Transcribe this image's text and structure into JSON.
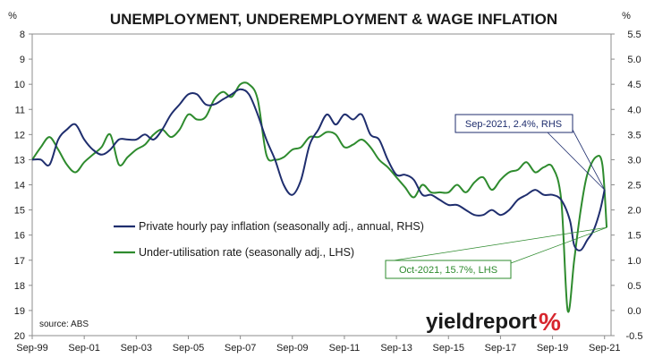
{
  "chart_data": {
    "type": "line",
    "title": "UNEMPLOYMENT, UNDEREMPLOYMENT & WAGE INFLATION",
    "left_axis": {
      "unit_label": "%",
      "range": [
        8,
        20
      ],
      "inverted": true,
      "ticks": [
        "8",
        "9",
        "10",
        "11",
        "12",
        "13",
        "14",
        "15",
        "16",
        "17",
        "18",
        "19",
        "20"
      ]
    },
    "right_axis": {
      "unit_label": "%",
      "range": [
        -0.5,
        5.5
      ],
      "ticks": [
        "5.5",
        "5.0",
        "4.5",
        "4.0",
        "3.5",
        "3.0",
        "2.5",
        "2.0",
        "1.5",
        "1.0",
        "0.5",
        "0.0",
        "-0.5"
      ]
    },
    "x_axis": {
      "range": [
        1999.667,
        2021.917
      ],
      "ticks": [
        "Sep-99",
        "Sep-01",
        "Sep-03",
        "Sep-05",
        "Sep-07",
        "Sep-09",
        "Sep-11",
        "Sep-13",
        "Sep-15",
        "Sep-17",
        "Sep-19",
        "Sep-21"
      ],
      "tick_values": [
        1999.667,
        2001.667,
        2003.667,
        2005.667,
        2007.667,
        2009.667,
        2011.667,
        2013.667,
        2015.667,
        2017.667,
        2019.667,
        2021.667
      ]
    },
    "grid": false,
    "legend_position": "center-left",
    "series": [
      {
        "name": "Private hourly pay inflation (seasonally adj., annual, RHS)",
        "axis": "right",
        "color": "#1f2e6e",
        "points": [
          [
            1999.667,
            3.0
          ],
          [
            2000.0,
            3.0
          ],
          [
            2000.333,
            2.9
          ],
          [
            2000.667,
            3.4
          ],
          [
            2001.0,
            3.6
          ],
          [
            2001.333,
            3.7
          ],
          [
            2001.667,
            3.4
          ],
          [
            2002.0,
            3.2
          ],
          [
            2002.333,
            3.1
          ],
          [
            2002.667,
            3.2
          ],
          [
            2003.0,
            3.4
          ],
          [
            2003.333,
            3.4
          ],
          [
            2003.667,
            3.4
          ],
          [
            2004.0,
            3.5
          ],
          [
            2004.333,
            3.4
          ],
          [
            2004.667,
            3.6
          ],
          [
            2005.0,
            3.9
          ],
          [
            2005.333,
            4.1
          ],
          [
            2005.667,
            4.3
          ],
          [
            2006.0,
            4.3
          ],
          [
            2006.333,
            4.1
          ],
          [
            2006.667,
            4.1
          ],
          [
            2007.0,
            4.2
          ],
          [
            2007.333,
            4.3
          ],
          [
            2007.667,
            4.4
          ],
          [
            2008.0,
            4.3
          ],
          [
            2008.333,
            3.9
          ],
          [
            2008.667,
            3.4
          ],
          [
            2009.0,
            3.0
          ],
          [
            2009.333,
            2.5
          ],
          [
            2009.667,
            2.3
          ],
          [
            2010.0,
            2.6
          ],
          [
            2010.333,
            3.3
          ],
          [
            2010.667,
            3.6
          ],
          [
            2011.0,
            3.9
          ],
          [
            2011.333,
            3.7
          ],
          [
            2011.667,
            3.9
          ],
          [
            2012.0,
            3.8
          ],
          [
            2012.333,
            3.9
          ],
          [
            2012.667,
            3.5
          ],
          [
            2013.0,
            3.4
          ],
          [
            2013.333,
            3.0
          ],
          [
            2013.667,
            2.7
          ],
          [
            2014.0,
            2.7
          ],
          [
            2014.333,
            2.6
          ],
          [
            2014.667,
            2.3
          ],
          [
            2015.0,
            2.3
          ],
          [
            2015.333,
            2.2
          ],
          [
            2015.667,
            2.1
          ],
          [
            2016.0,
            2.1
          ],
          [
            2016.333,
            2.0
          ],
          [
            2016.667,
            1.9
          ],
          [
            2017.0,
            1.9
          ],
          [
            2017.333,
            2.0
          ],
          [
            2017.667,
            1.9
          ],
          [
            2018.0,
            2.0
          ],
          [
            2018.333,
            2.2
          ],
          [
            2018.667,
            2.3
          ],
          [
            2019.0,
            2.4
          ],
          [
            2019.333,
            2.3
          ],
          [
            2019.667,
            2.3
          ],
          [
            2020.0,
            2.2
          ],
          [
            2020.333,
            1.8
          ],
          [
            2020.5,
            1.3
          ],
          [
            2020.75,
            1.2
          ],
          [
            2021.0,
            1.4
          ],
          [
            2021.25,
            1.6
          ],
          [
            2021.5,
            2.0
          ],
          [
            2021.667,
            2.4
          ]
        ]
      },
      {
        "name": "Under-utilisation rate (seasonally adj., LHS)",
        "axis": "left",
        "color": "#2e8b2e",
        "points": [
          [
            1999.667,
            13.0
          ],
          [
            2000.0,
            12.5
          ],
          [
            2000.333,
            12.1
          ],
          [
            2000.667,
            12.6
          ],
          [
            2001.0,
            13.2
          ],
          [
            2001.333,
            13.5
          ],
          [
            2001.667,
            13.1
          ],
          [
            2002.0,
            12.8
          ],
          [
            2002.333,
            12.5
          ],
          [
            2002.667,
            12.0
          ],
          [
            2003.0,
            13.2
          ],
          [
            2003.333,
            12.9
          ],
          [
            2003.667,
            12.6
          ],
          [
            2004.0,
            12.4
          ],
          [
            2004.333,
            12.0
          ],
          [
            2004.667,
            11.8
          ],
          [
            2005.0,
            12.1
          ],
          [
            2005.333,
            11.8
          ],
          [
            2005.667,
            11.2
          ],
          [
            2006.0,
            11.4
          ],
          [
            2006.333,
            11.3
          ],
          [
            2006.667,
            10.6
          ],
          [
            2007.0,
            10.3
          ],
          [
            2007.333,
            10.5
          ],
          [
            2007.667,
            10.0
          ],
          [
            2008.0,
            10.0
          ],
          [
            2008.333,
            10.6
          ],
          [
            2008.667,
            12.8
          ],
          [
            2009.0,
            13.0
          ],
          [
            2009.333,
            12.9
          ],
          [
            2009.667,
            12.6
          ],
          [
            2010.0,
            12.5
          ],
          [
            2010.333,
            12.1
          ],
          [
            2010.667,
            12.1
          ],
          [
            2011.0,
            11.9
          ],
          [
            2011.333,
            12.0
          ],
          [
            2011.667,
            12.5
          ],
          [
            2012.0,
            12.4
          ],
          [
            2012.333,
            12.2
          ],
          [
            2012.667,
            12.5
          ],
          [
            2013.0,
            13.0
          ],
          [
            2013.333,
            13.3
          ],
          [
            2013.667,
            13.7
          ],
          [
            2014.0,
            14.1
          ],
          [
            2014.333,
            14.5
          ],
          [
            2014.667,
            14.0
          ],
          [
            2015.0,
            14.3
          ],
          [
            2015.333,
            14.3
          ],
          [
            2015.667,
            14.3
          ],
          [
            2016.0,
            14.0
          ],
          [
            2016.333,
            14.3
          ],
          [
            2016.667,
            13.9
          ],
          [
            2017.0,
            13.7
          ],
          [
            2017.333,
            14.2
          ],
          [
            2017.667,
            13.8
          ],
          [
            2018.0,
            13.5
          ],
          [
            2018.333,
            13.4
          ],
          [
            2018.667,
            13.1
          ],
          [
            2019.0,
            13.5
          ],
          [
            2019.333,
            13.3
          ],
          [
            2019.667,
            13.3
          ],
          [
            2020.0,
            14.6
          ],
          [
            2020.25,
            19.0
          ],
          [
            2020.5,
            17.0
          ],
          [
            2020.75,
            15.0
          ],
          [
            2021.0,
            13.6
          ],
          [
            2021.333,
            12.9
          ],
          [
            2021.583,
            13.2
          ],
          [
            2021.75,
            15.7
          ]
        ]
      }
    ],
    "annotations": [
      {
        "text": "Sep-2021, 2.4%, RHS",
        "color": "#1f2e6e"
      },
      {
        "text": "Oct-2021, 15.7%, LHS",
        "color": "#2e8b2e"
      }
    ],
    "source_note": "source: ABS",
    "logo": {
      "text": "yieldreport",
      "symbol": "%"
    }
  }
}
